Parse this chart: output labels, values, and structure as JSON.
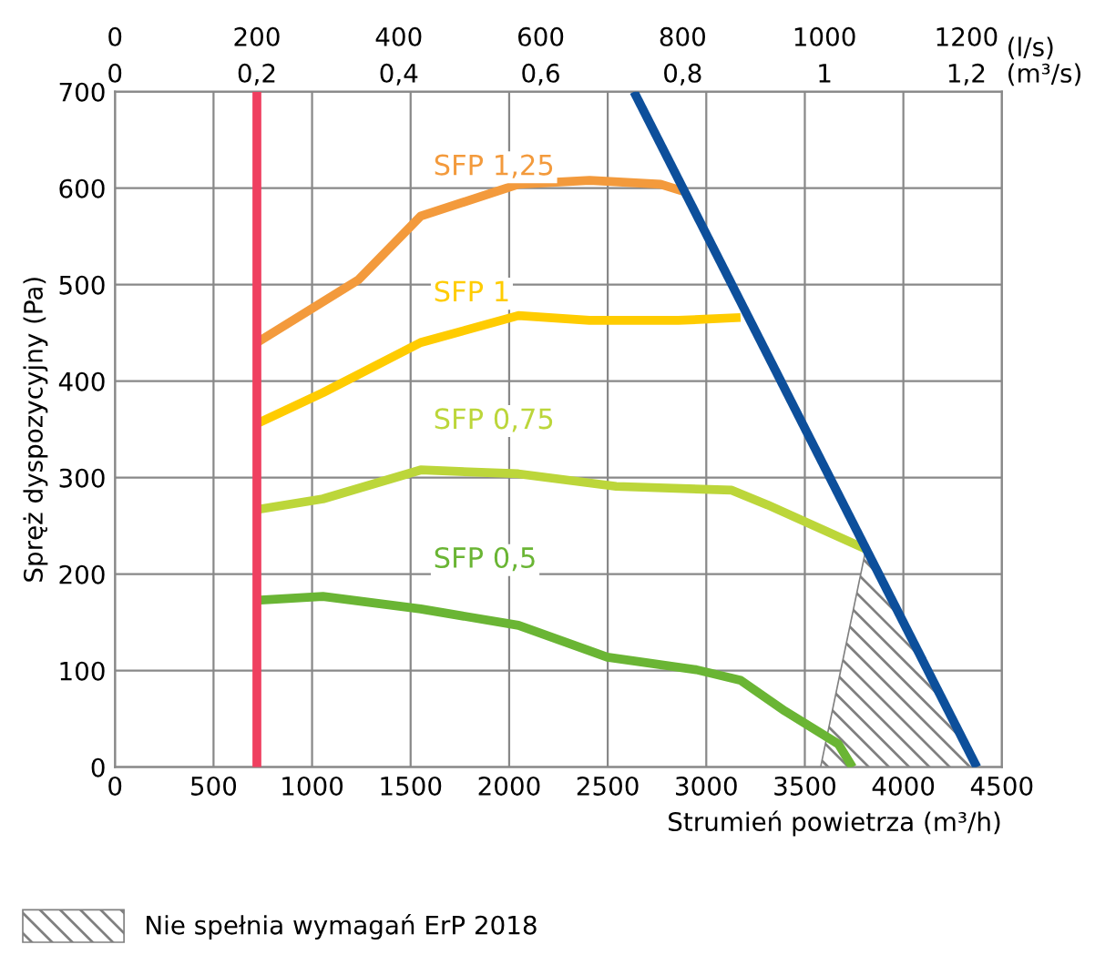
{
  "chart_data": {
    "type": "line",
    "xlabel": "Strumień powietrza (m³/h)",
    "ylabel": "Spręż dyspozycyjny (Pa)",
    "xlim": [
      0,
      4500
    ],
    "xticks": [
      0,
      500,
      1000,
      1500,
      2000,
      2500,
      3000,
      3500,
      4000,
      4500
    ],
    "ylim": [
      0,
      700
    ],
    "yticks": [
      0,
      100,
      200,
      300,
      400,
      500,
      600,
      700
    ],
    "x2label": "(l/s)",
    "x2lim": [
      0,
      1250
    ],
    "x2ticks": [
      0,
      200,
      400,
      600,
      800,
      1000,
      1200
    ],
    "annotations": [
      "0",
      "0,2",
      "0,4",
      "0,6",
      "0,8",
      "1",
      "1,2",
      "(m³/s)"
    ],
    "grid": true,
    "legend": "bottom left",
    "series": [
      {
        "type": "area",
        "name": "Nie spełnia wymagań ErP 2018",
        "color": "#808080",
        "x": [
          3580,
          3810,
          4373
        ],
        "values": [
          0,
          226,
          0
        ]
      },
      {
        "name": "SFP 1,25",
        "color": "#f39a3c",
        "x": [
          720,
          1235,
          1551,
          2047,
          2408,
          2768,
          2880
        ],
        "values": [
          440,
          505,
          571,
          604,
          608,
          604,
          597
        ]
      },
      {
        "name": "SFP 1",
        "color": "#ffcc00",
        "x": [
          720,
          1055,
          1551,
          2047,
          2408,
          2858,
          3174
        ],
        "values": [
          356,
          388,
          440,
          468,
          463,
          463,
          466
        ]
      },
      {
        "name": "SFP 0,75",
        "color": "#bcd63a",
        "x": [
          720,
          1055,
          1551,
          2047,
          2543,
          3129,
          3309,
          3810
        ],
        "values": [
          267,
          278,
          308,
          304,
          291,
          287,
          272,
          226
        ]
      },
      {
        "name": "SFP 0,5",
        "color": "#6ab534",
        "x": [
          720,
          1055,
          1551,
          2047,
          2498,
          2949,
          3174,
          3400,
          3670,
          3742
        ],
        "values": [
          173,
          177,
          164,
          147,
          114,
          101,
          90,
          58,
          24,
          0
        ]
      },
      {
        "color": "#ef4060",
        "x": [
          720,
          720
        ],
        "values": [
          0,
          700
        ]
      },
      {
        "color": "#0d4f9b",
        "x": [
          2633,
          4373
        ],
        "values": [
          700,
          0
        ]
      }
    ]
  }
}
